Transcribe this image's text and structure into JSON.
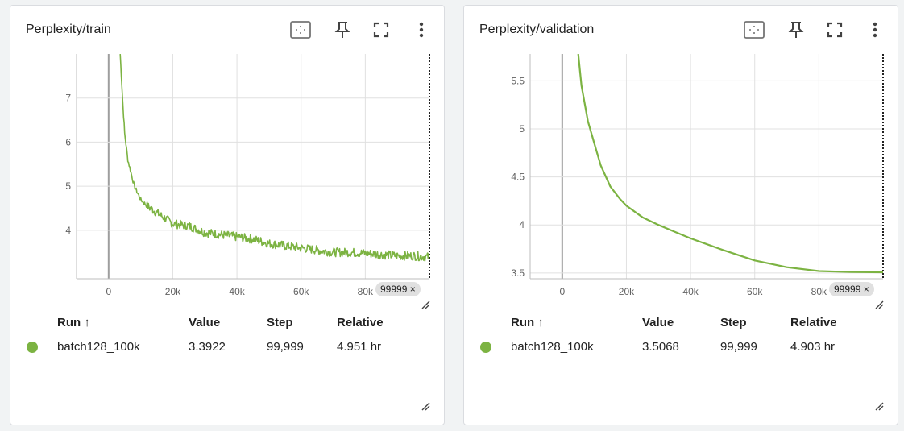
{
  "accent_color": "#7cb342",
  "cards": [
    {
      "title": "Perplexity/train",
      "step_chip": "99999",
      "chip_close": "×",
      "table": {
        "headers": {
          "run": "Run ↑",
          "value": "Value",
          "step": "Step",
          "relative": "Relative"
        },
        "rows": [
          {
            "run": "batch128_100k",
            "value": "3.3922",
            "step": "99,999",
            "relative": "4.951 hr"
          }
        ]
      }
    },
    {
      "title": "Perplexity/validation",
      "step_chip": "99999",
      "chip_close": "×",
      "table": {
        "headers": {
          "run": "Run ↑",
          "value": "Value",
          "step": "Step",
          "relative": "Relative"
        },
        "rows": [
          {
            "run": "batch128_100k",
            "value": "3.5068",
            "step": "99,999",
            "relative": "4.903 hr"
          }
        ]
      }
    }
  ],
  "chart_data": [
    {
      "type": "line",
      "title": "Perplexity/train",
      "xlim": [
        -10000,
        100000
      ],
      "ylim": [
        2.9,
        8
      ],
      "xticks": [
        0,
        20000,
        40000,
        60000,
        80000
      ],
      "xtick_labels": [
        "0",
        "20k",
        "40k",
        "60k",
        "80k"
      ],
      "yticks": [
        4,
        5,
        6,
        7
      ],
      "ytick_labels": [
        "4",
        "5",
        "6",
        "7"
      ],
      "grid": true,
      "cursor_step": 99999,
      "series": [
        {
          "name": "batch128_100k",
          "color": "#7cb342",
          "noisy": true,
          "x": [
            3600,
            4500,
            5000,
            6000,
            7000,
            8000,
            9000,
            10000,
            12000,
            15000,
            18000,
            20000,
            25000,
            30000,
            35000,
            40000,
            45000,
            50000,
            55000,
            60000,
            65000,
            70000,
            75000,
            80000,
            85000,
            90000,
            95000,
            99999
          ],
          "y": [
            8.0,
            6.8,
            6.2,
            5.6,
            5.3,
            5.0,
            4.85,
            4.7,
            4.55,
            4.4,
            4.25,
            4.15,
            4.1,
            3.95,
            3.9,
            3.85,
            3.8,
            3.7,
            3.65,
            3.6,
            3.55,
            3.5,
            3.5,
            3.48,
            3.45,
            3.42,
            3.42,
            3.39
          ]
        }
      ]
    },
    {
      "type": "line",
      "title": "Perplexity/validation",
      "xlim": [
        -10000,
        100000
      ],
      "ylim": [
        3.44,
        5.78
      ],
      "xticks": [
        0,
        20000,
        40000,
        60000,
        80000
      ],
      "xtick_labels": [
        "0",
        "20k",
        "40k",
        "60k",
        "80k"
      ],
      "yticks": [
        3.5,
        4,
        4.5,
        5,
        5.5
      ],
      "ytick_labels": [
        "3.5",
        "4",
        "4.5",
        "5",
        "5.5"
      ],
      "grid": true,
      "cursor_step": 99999,
      "series": [
        {
          "name": "batch128_100k",
          "color": "#7cb342",
          "noisy": false,
          "x": [
            5000,
            6000,
            8000,
            10000,
            12000,
            15000,
            18000,
            20000,
            25000,
            30000,
            35000,
            40000,
            50000,
            60000,
            70000,
            80000,
            90000,
            99999
          ],
          "y": [
            5.78,
            5.45,
            5.08,
            4.85,
            4.62,
            4.4,
            4.27,
            4.2,
            4.08,
            4.0,
            3.93,
            3.86,
            3.74,
            3.63,
            3.56,
            3.52,
            3.51,
            3.507
          ]
        }
      ]
    }
  ]
}
